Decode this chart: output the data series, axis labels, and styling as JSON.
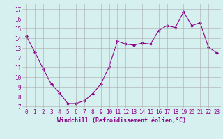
{
  "x": [
    0,
    1,
    2,
    3,
    4,
    5,
    6,
    7,
    8,
    9,
    10,
    11,
    12,
    13,
    14,
    15,
    16,
    17,
    18,
    19,
    20,
    21,
    22,
    23
  ],
  "y": [
    14.2,
    12.6,
    10.9,
    9.3,
    8.4,
    7.3,
    7.3,
    7.6,
    8.3,
    9.3,
    11.1,
    13.7,
    13.4,
    13.3,
    13.5,
    13.4,
    14.8,
    15.3,
    15.1,
    16.7,
    15.3,
    15.6,
    13.1,
    12.5
  ],
  "line_color": "#880088",
  "marker": "D",
  "marker_size": 2,
  "bg_color": "#d6f0f0",
  "grid_color": "#aaaaaa",
  "ylabel_ticks": [
    7,
    8,
    9,
    10,
    11,
    12,
    13,
    14,
    15,
    16,
    17
  ],
  "xlabel": "Windchill (Refroidissement éolien,°C)",
  "ylim": [
    6.8,
    17.5
  ],
  "xlim": [
    -0.5,
    23.5
  ],
  "xlabel_color": "#880088",
  "tick_color": "#880088",
  "tick_fontsize": 5.5,
  "xlabel_fontsize": 6.0,
  "linewidth": 0.8
}
